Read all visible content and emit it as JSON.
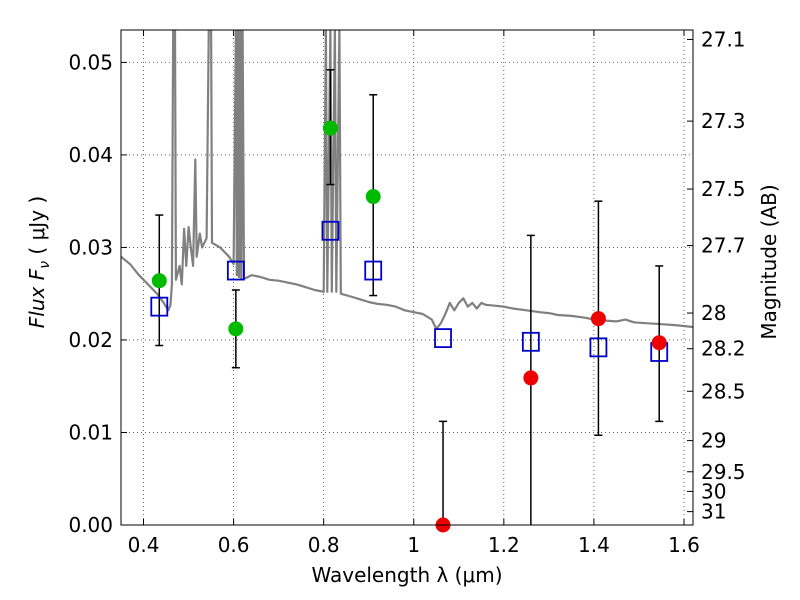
{
  "chart_data": {
    "type": "scatter",
    "xlabel": "Wavelength  λ (μm)",
    "ylabel": "Flux  F",
    "ylabel_sub": "ν",
    "ylabel_unit": "  ( μJy )",
    "y2label": "Magnitude (AB)",
    "xlim": [
      0.35,
      1.62
    ],
    "ylim": [
      0.0,
      0.0535
    ],
    "grid": true,
    "x_ticks": [
      {
        "value": 0.4,
        "label": "0.4"
      },
      {
        "value": 0.6,
        "label": "0.6"
      },
      {
        "value": 0.8,
        "label": "0.8"
      },
      {
        "value": 1.0,
        "label": "1"
      },
      {
        "value": 1.2,
        "label": "1.2"
      },
      {
        "value": 1.4,
        "label": "1.4"
      },
      {
        "value": 1.6,
        "label": "1.6"
      }
    ],
    "y_ticks": [
      {
        "value": 0.0,
        "label": "0.00"
      },
      {
        "value": 0.01,
        "label": "0.01"
      },
      {
        "value": 0.02,
        "label": "0.02"
      },
      {
        "value": 0.03,
        "label": "0.03"
      },
      {
        "value": 0.04,
        "label": "0.04"
      },
      {
        "value": 0.05,
        "label": "0.05"
      }
    ],
    "y2_ticks": [
      {
        "mag": 27.1,
        "label": "27.1"
      },
      {
        "mag": 27.3,
        "label": "27.3"
      },
      {
        "mag": 27.5,
        "label": "27.5"
      },
      {
        "mag": 27.7,
        "label": "27.7"
      },
      {
        "mag": 28.0,
        "label": "28"
      },
      {
        "mag": 28.2,
        "label": "28.2"
      },
      {
        "mag": 28.5,
        "label": "28.5"
      },
      {
        "mag": 29.0,
        "label": "29"
      },
      {
        "mag": 29.5,
        "label": "29.5"
      },
      {
        "mag": 30.0,
        "label": "30"
      },
      {
        "mag": 31.0,
        "label": "31"
      }
    ],
    "series": [
      {
        "kind": "line",
        "color": "#808080",
        "points": [
          [
            0.35,
            0.029
          ],
          [
            0.37,
            0.0282
          ],
          [
            0.39,
            0.027
          ],
          [
            0.41,
            0.026
          ],
          [
            0.43,
            0.025
          ],
          [
            0.445,
            0.024
          ],
          [
            0.455,
            0.0232
          ],
          [
            0.46,
            0.0238
          ],
          [
            0.463,
            0.026
          ],
          [
            0.466,
            0.054
          ],
          [
            0.47,
            0.054
          ],
          [
            0.472,
            0.0265
          ],
          [
            0.48,
            0.028
          ],
          [
            0.485,
            0.026
          ],
          [
            0.49,
            0.032
          ],
          [
            0.495,
            0.028
          ],
          [
            0.5,
            0.0322
          ],
          [
            0.505,
            0.03
          ],
          [
            0.51,
            0.028
          ],
          [
            0.515,
            0.0395
          ],
          [
            0.518,
            0.029
          ],
          [
            0.525,
            0.0315
          ],
          [
            0.53,
            0.03
          ],
          [
            0.54,
            0.031
          ],
          [
            0.545,
            0.054
          ],
          [
            0.55,
            0.054
          ],
          [
            0.552,
            0.0305
          ],
          [
            0.57,
            0.03
          ],
          [
            0.58,
            0.0295
          ],
          [
            0.59,
            0.029
          ],
          [
            0.6,
            0.0282
          ],
          [
            0.605,
            0.054
          ],
          [
            0.607,
            0.027
          ],
          [
            0.61,
            0.054
          ],
          [
            0.612,
            0.0268
          ],
          [
            0.615,
            0.054
          ],
          [
            0.617,
            0.0266
          ],
          [
            0.62,
            0.054
          ],
          [
            0.623,
            0.0266
          ],
          [
            0.64,
            0.027
          ],
          [
            0.66,
            0.0268
          ],
          [
            0.68,
            0.0265
          ],
          [
            0.7,
            0.0264
          ],
          [
            0.72,
            0.0262
          ],
          [
            0.74,
            0.026
          ],
          [
            0.76,
            0.0257
          ],
          [
            0.78,
            0.0254
          ],
          [
            0.8,
            0.0252
          ],
          [
            0.805,
            0.054
          ],
          [
            0.808,
            0.0252
          ],
          [
            0.815,
            0.054
          ],
          [
            0.818,
            0.0252
          ],
          [
            0.825,
            0.054
          ],
          [
            0.828,
            0.0252
          ],
          [
            0.835,
            0.054
          ],
          [
            0.838,
            0.025
          ],
          [
            0.86,
            0.0247
          ],
          [
            0.88,
            0.0244
          ],
          [
            0.9,
            0.0241
          ],
          [
            0.92,
            0.0239
          ],
          [
            0.94,
            0.0238
          ],
          [
            0.96,
            0.0236
          ],
          [
            0.98,
            0.0232
          ],
          [
            1.0,
            0.023
          ],
          [
            1.02,
            0.0228
          ],
          [
            1.04,
            0.0222
          ],
          [
            1.05,
            0.0212
          ],
          [
            1.06,
            0.0218
          ],
          [
            1.07,
            0.0228
          ],
          [
            1.08,
            0.024
          ],
          [
            1.09,
            0.0232
          ],
          [
            1.1,
            0.024
          ],
          [
            1.11,
            0.0245
          ],
          [
            1.12,
            0.0236
          ],
          [
            1.13,
            0.024
          ],
          [
            1.14,
            0.0234
          ],
          [
            1.15,
            0.024
          ],
          [
            1.16,
            0.0238
          ],
          [
            1.18,
            0.0237
          ],
          [
            1.2,
            0.0236
          ],
          [
            1.22,
            0.0234
          ],
          [
            1.25,
            0.0232
          ],
          [
            1.28,
            0.023
          ],
          [
            1.3,
            0.0229
          ],
          [
            1.32,
            0.0227
          ],
          [
            1.35,
            0.0226
          ],
          [
            1.38,
            0.0224
          ],
          [
            1.4,
            0.0222
          ],
          [
            1.42,
            0.0221
          ],
          [
            1.45,
            0.022
          ],
          [
            1.47,
            0.0222
          ],
          [
            1.49,
            0.0219
          ],
          [
            1.52,
            0.0218
          ],
          [
            1.55,
            0.0217
          ],
          [
            1.58,
            0.0216
          ],
          [
            1.62,
            0.0214
          ]
        ]
      },
      {
        "kind": "errorbar",
        "color": "#000000",
        "points": [
          {
            "x": 0.435,
            "low": 0.0194,
            "high": 0.0335
          },
          {
            "x": 0.605,
            "low": 0.017,
            "high": 0.0254
          },
          {
            "x": 0.815,
            "low": 0.0368,
            "high": 0.0492
          },
          {
            "x": 0.91,
            "low": 0.0248,
            "high": 0.0465
          },
          {
            "x": 1.065,
            "low": 0.0,
            "high": 0.0112
          },
          {
            "x": 1.26,
            "low": 0.0,
            "high": 0.0313
          },
          {
            "x": 1.41,
            "low": 0.0097,
            "high": 0.035
          },
          {
            "x": 1.545,
            "low": 0.0112,
            "high": 0.028
          }
        ]
      },
      {
        "kind": "square",
        "color": "#0000cc",
        "points": [
          [
            0.435,
            0.0236
          ],
          [
            0.605,
            0.0275
          ],
          [
            0.815,
            0.0318
          ],
          [
            0.91,
            0.0275
          ],
          [
            1.065,
            0.0202
          ],
          [
            1.26,
            0.0198
          ],
          [
            1.41,
            0.0192
          ],
          [
            1.545,
            0.0187
          ]
        ]
      },
      {
        "kind": "circle",
        "color": "#00bb00",
        "points": [
          [
            0.435,
            0.0264
          ],
          [
            0.605,
            0.0212
          ],
          [
            0.815,
            0.0429
          ],
          [
            0.91,
            0.0355
          ]
        ]
      },
      {
        "kind": "circle",
        "color": "#ee0000",
        "points": [
          [
            1.065,
            0.0
          ],
          [
            1.26,
            0.0159
          ],
          [
            1.41,
            0.0223
          ],
          [
            1.545,
            0.0197
          ]
        ]
      }
    ]
  }
}
